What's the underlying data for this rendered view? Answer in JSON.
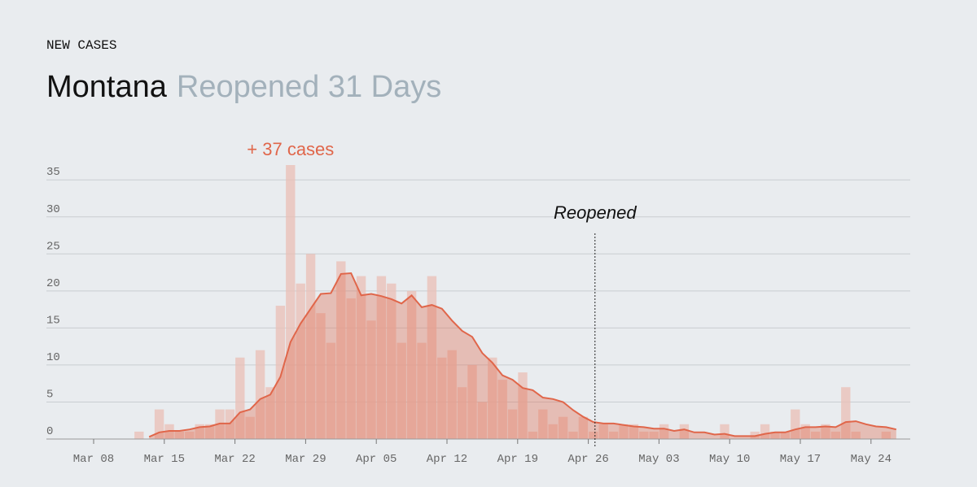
{
  "chart_data": {
    "type": "bar",
    "kicker": "NEW CASES",
    "title": "Montana",
    "subtitle": "Reopened 31 Days",
    "categories": [
      "Mar 08",
      "Mar 09",
      "Mar 10",
      "Mar 11",
      "Mar 12",
      "Mar 13",
      "Mar 14",
      "Mar 15",
      "Mar 16",
      "Mar 17",
      "Mar 18",
      "Mar 19",
      "Mar 20",
      "Mar 21",
      "Mar 22",
      "Mar 23",
      "Mar 24",
      "Mar 25",
      "Mar 26",
      "Mar 27",
      "Mar 28",
      "Mar 29",
      "Mar 30",
      "Mar 31",
      "Apr 01",
      "Apr 02",
      "Apr 03",
      "Apr 04",
      "Apr 05",
      "Apr 06",
      "Apr 07",
      "Apr 08",
      "Apr 09",
      "Apr 10",
      "Apr 11",
      "Apr 12",
      "Apr 13",
      "Apr 14",
      "Apr 15",
      "Apr 16",
      "Apr 17",
      "Apr 18",
      "Apr 19",
      "Apr 20",
      "Apr 21",
      "Apr 22",
      "Apr 23",
      "Apr 24",
      "Apr 25",
      "Apr 26",
      "Apr 27",
      "Apr 28",
      "Apr 29",
      "Apr 30",
      "May 01",
      "May 02",
      "May 03",
      "May 04",
      "May 05",
      "May 06",
      "May 07",
      "May 08",
      "May 09",
      "May 10",
      "May 11",
      "May 12",
      "May 13",
      "May 14",
      "May 15",
      "May 16",
      "May 17",
      "May 18",
      "May 19",
      "May 20",
      "May 21",
      "May 22",
      "May 23",
      "May 24",
      "May 25",
      "May 26"
    ],
    "series": [
      {
        "type": "bar",
        "color": "#e9bfb5",
        "values": [
          0,
          0,
          0,
          0,
          1,
          0,
          4,
          2,
          1,
          1,
          2,
          2,
          4,
          4,
          11,
          3,
          12,
          7,
          18,
          37,
          21,
          25,
          17,
          13,
          24,
          19,
          22,
          16,
          22,
          21,
          13,
          20,
          13,
          22,
          11,
          12,
          7,
          10,
          5,
          11,
          8,
          4,
          9,
          1,
          4,
          2,
          3,
          1,
          3,
          1,
          2,
          1,
          2,
          2,
          1,
          1,
          2,
          0,
          2,
          0,
          0,
          0,
          2,
          0,
          0,
          1,
          2,
          1,
          1,
          4,
          2,
          1,
          2,
          1,
          7,
          1,
          0,
          0,
          1,
          0
        ]
      },
      {
        "type": "area",
        "color": "#e0664a",
        "values": [
          null,
          null,
          null,
          null,
          null,
          0.3,
          0.9,
          1.1,
          1.1,
          1.3,
          1.6,
          1.7,
          2.1,
          2.1,
          3.6,
          4.0,
          5.4,
          6.0,
          8.4,
          13.1,
          15.6,
          17.6,
          19.6,
          19.7,
          22.3,
          22.4,
          19.4,
          19.6,
          19.3,
          18.9,
          18.3,
          19.4,
          17.8,
          18.1,
          17.6,
          16.0,
          14.6,
          13.8,
          11.6,
          10.3,
          8.6,
          8.0,
          6.9,
          6.6,
          5.6,
          5.4,
          5.0,
          3.9,
          3.0,
          2.3,
          2.1,
          2.1,
          1.9,
          1.7,
          1.6,
          1.4,
          1.4,
          1.1,
          1.3,
          0.9,
          0.9,
          0.6,
          0.7,
          0.4,
          0.4,
          0.4,
          0.7,
          0.9,
          0.9,
          1.3,
          1.6,
          1.6,
          1.7,
          1.6,
          2.3,
          2.4,
          2.0,
          1.7,
          1.6,
          1.3
        ]
      }
    ],
    "xticks": [
      "Mar 08",
      "Mar 15",
      "Mar 22",
      "Mar 29",
      "Apr 05",
      "Apr 12",
      "Apr 19",
      "Apr 26",
      "May 03",
      "May 10",
      "May 17",
      "May 24"
    ],
    "ylim": [
      0,
      37
    ],
    "yticks": [
      0,
      5,
      10,
      15,
      20,
      25,
      30,
      35
    ],
    "grid": true,
    "peak_label": "+ 37 cases",
    "annotation": {
      "text": "Reopened",
      "x": "Apr 26"
    }
  }
}
